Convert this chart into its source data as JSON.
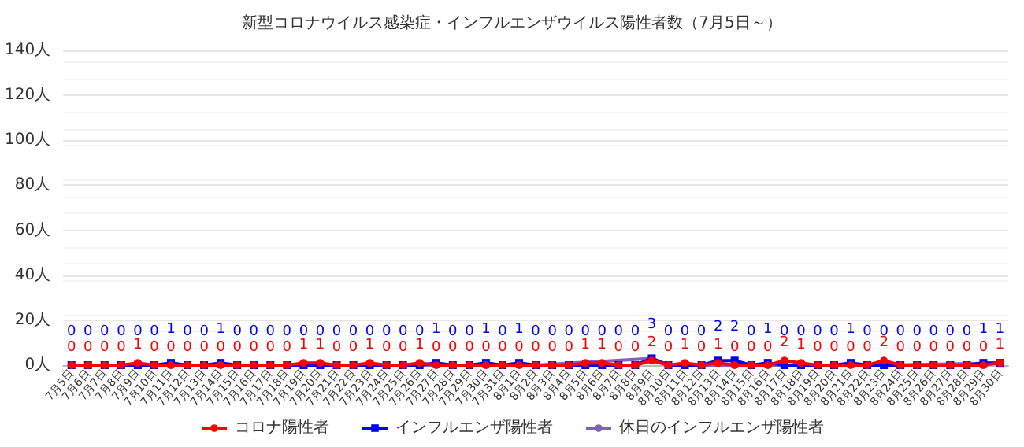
{
  "chart_data": {
    "type": "line",
    "title": "新型コロナウイルス感染症・インフルエンザウイルス陽性者数（7月5日～）",
    "categories": [
      "7月5日",
      "7月6日",
      "7月7日",
      "7月8日",
      "7月9日",
      "7月10日",
      "7月11日",
      "7月12日",
      "7月13日",
      "7月14日",
      "7月15日",
      "7月16日",
      "7月17日",
      "7月18日",
      "7月19日",
      "7月20日",
      "7月21日",
      "7月22日",
      "7月23日",
      "7月24日",
      "7月25日",
      "7月26日",
      "7月27日",
      "7月28日",
      "7月29日",
      "7月30日",
      "7月31日",
      "8月1日",
      "8月2日",
      "8月3日",
      "8月4日",
      "8月5日",
      "8月6日",
      "8月7日",
      "8月8日",
      "8月9日",
      "8月10日",
      "8月11日",
      "8月12日",
      "8月13日",
      "8月14日",
      "8月15日",
      "8月16日",
      "8月17日",
      "8月18日",
      "8月19日",
      "8月20日",
      "8月21日",
      "8月22日",
      "8月23日",
      "8月24日",
      "8月25日",
      "8月26日",
      "8月27日",
      "8月28日",
      "8月29日",
      "8月30日"
    ],
    "series": [
      {
        "name": "コロナ陽性者",
        "color": "#ff0000",
        "marker": "circle",
        "data_labels": true,
        "values": [
          0,
          0,
          0,
          0,
          1,
          0,
          0,
          0,
          0,
          0,
          0,
          0,
          0,
          0,
          1,
          1,
          0,
          0,
          1,
          0,
          0,
          1,
          0,
          0,
          0,
          0,
          0,
          0,
          0,
          0,
          0,
          1,
          1,
          0,
          0,
          2,
          0,
          1,
          0,
          1,
          0,
          0,
          0,
          2,
          1,
          0,
          0,
          0,
          0,
          2,
          0,
          0,
          0,
          0,
          0,
          0,
          1
        ]
      },
      {
        "name": "インフルエンザ陽性者",
        "color": "#0000ff",
        "marker": "square",
        "data_labels": true,
        "values": [
          0,
          0,
          0,
          0,
          0,
          0,
          1,
          0,
          0,
          1,
          0,
          0,
          0,
          0,
          0,
          0,
          0,
          0,
          0,
          0,
          0,
          0,
          1,
          0,
          0,
          1,
          0,
          1,
          0,
          0,
          0,
          0,
          0,
          0,
          0,
          3,
          0,
          0,
          0,
          2,
          2,
          0,
          1,
          0,
          0,
          0,
          0,
          1,
          0,
          0,
          0,
          0,
          0,
          0,
          0,
          1,
          1
        ]
      },
      {
        "name": "休日のインフルエンザ陽性者",
        "color": "#7f5fbf",
        "marker": "circle",
        "values": [
          0,
          null,
          null,
          null,
          null,
          null,
          null,
          0,
          null,
          null,
          null,
          null,
          null,
          null,
          0,
          null,
          null,
          null,
          0,
          0,
          null,
          0,
          null,
          null,
          null,
          null,
          null,
          null,
          0,
          null,
          null,
          null,
          null,
          null,
          null,
          3,
          0,
          null,
          null,
          null,
          null,
          null,
          0,
          null,
          null,
          null,
          null,
          null,
          null,
          0,
          null,
          null,
          null,
          null,
          null,
          null,
          1
        ]
      }
    ],
    "ylim": [
      0,
      140
    ],
    "yticks": [
      {
        "value": 0,
        "label": "0人"
      },
      {
        "value": 20,
        "label": "20人"
      },
      {
        "value": 40,
        "label": "40人"
      },
      {
        "value": 60,
        "label": "60人"
      },
      {
        "value": 80,
        "label": "80人"
      },
      {
        "value": 100,
        "label": "100人"
      },
      {
        "value": 120,
        "label": "120人"
      },
      {
        "value": 140,
        "label": "140人"
      }
    ],
    "grid": "y",
    "legend": "bottom",
    "line_style": "solid"
  }
}
